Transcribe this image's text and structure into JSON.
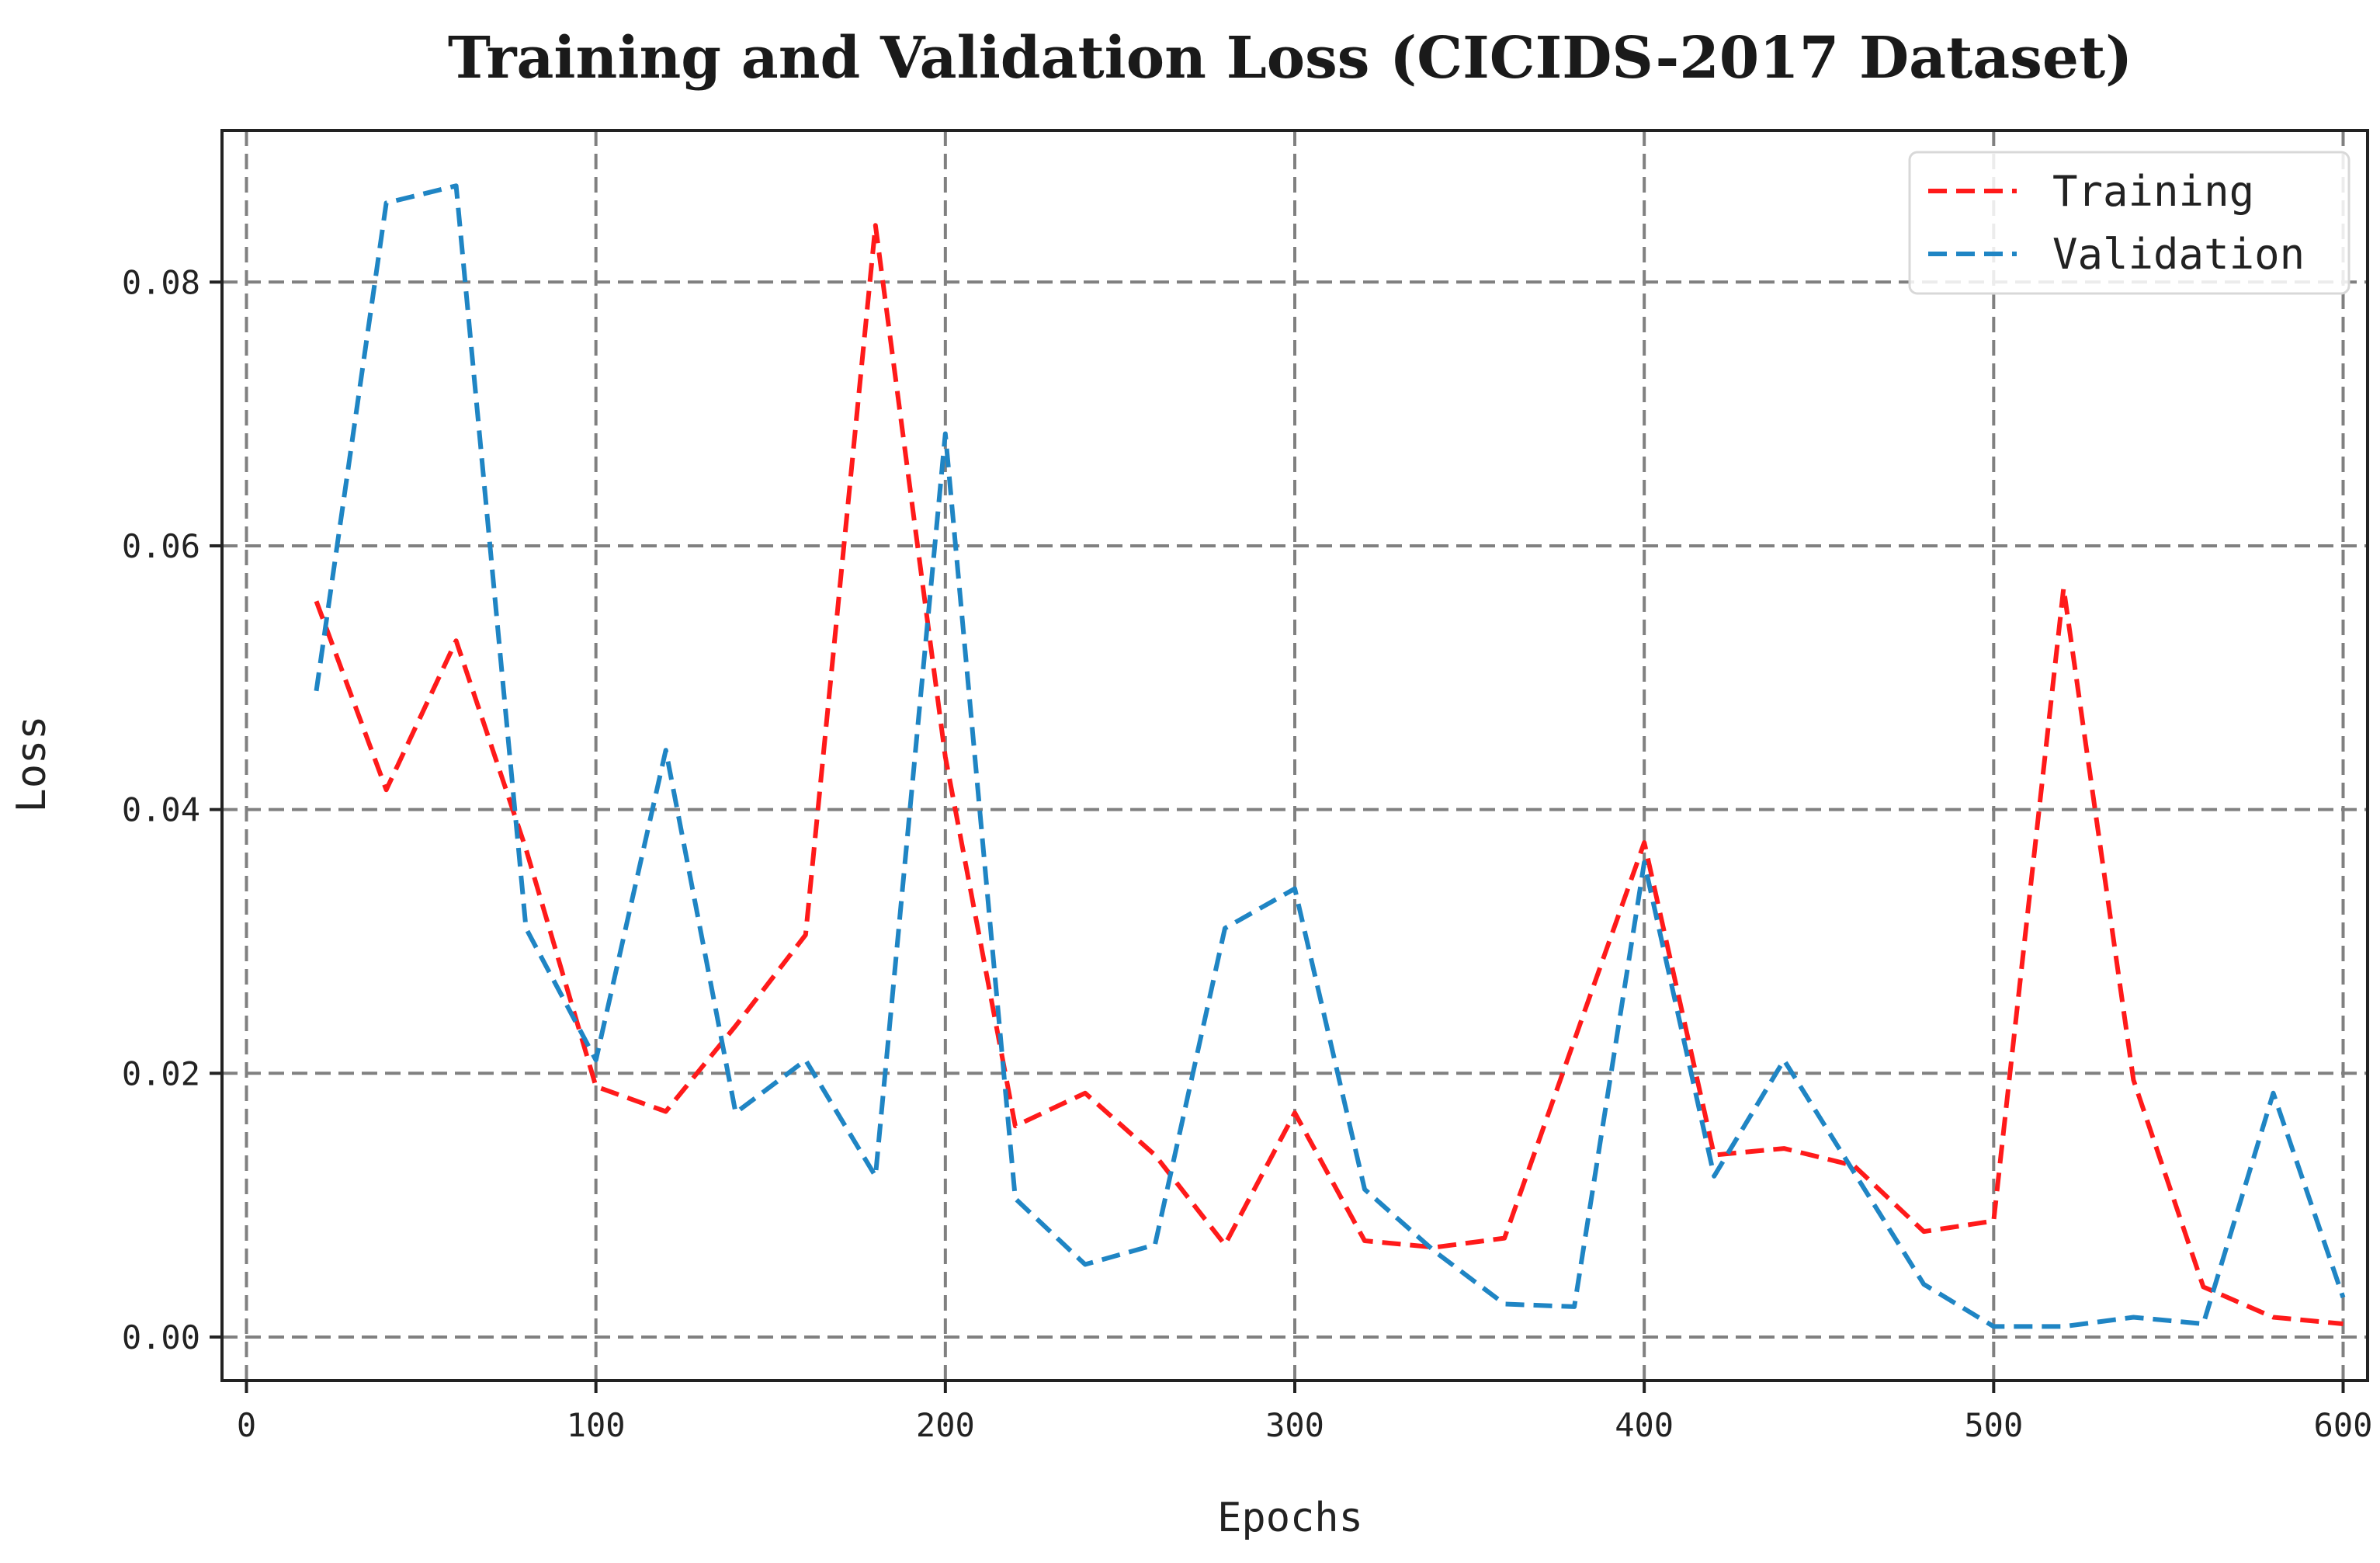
{
  "chart_data": {
    "type": "line",
    "title": "Training and Validation Loss (CICIDS-2017 Dataset)",
    "xlabel": "Epochs",
    "ylabel": "Loss",
    "xlim": [
      -7,
      607
    ],
    "ylim": [
      -0.0033,
      0.0915
    ],
    "xticks": [
      0,
      100,
      200,
      300,
      400,
      500,
      600
    ],
    "yticks": [
      0.0,
      0.02,
      0.04,
      0.06,
      0.08
    ],
    "xtick_labels": [
      "0",
      "100",
      "200",
      "300",
      "400",
      "500",
      "600"
    ],
    "ytick_labels": [
      "0.00",
      "0.02",
      "0.04",
      "0.06",
      "0.08"
    ],
    "grid": true,
    "legend_position": "top-right",
    "x": [
      20,
      40,
      60,
      80,
      100,
      120,
      140,
      160,
      180,
      200,
      220,
      240,
      260,
      280,
      300,
      320,
      340,
      360,
      380,
      400,
      420,
      440,
      460,
      480,
      500,
      520,
      540,
      560,
      580,
      600
    ],
    "series": [
      {
        "name": "Training",
        "color": "#ff1a1a",
        "values": [
          0.0558,
          0.0415,
          0.0528,
          0.037,
          0.019,
          0.0171,
          0.0236,
          0.0305,
          0.0843,
          0.044,
          0.016,
          0.0185,
          0.0138,
          0.007,
          0.017,
          0.0073,
          0.0068,
          0.0075,
          0.0225,
          0.0375,
          0.0138,
          0.0143,
          0.013,
          0.008,
          0.0088,
          0.0568,
          0.0195,
          0.0038,
          0.0015,
          0.001
        ]
      },
      {
        "name": "Validation",
        "color": "#1f85c4",
        "values": [
          0.049,
          0.086,
          0.0873,
          0.031,
          0.021,
          0.0445,
          0.017,
          0.021,
          0.0122,
          0.0685,
          0.0105,
          0.0055,
          0.007,
          0.031,
          0.034,
          0.0112,
          0.0065,
          0.0025,
          0.0023,
          0.036,
          0.0122,
          0.021,
          0.0125,
          0.004,
          0.0008,
          0.0008,
          0.0015,
          0.001,
          0.0185,
          0.003
        ]
      }
    ]
  }
}
